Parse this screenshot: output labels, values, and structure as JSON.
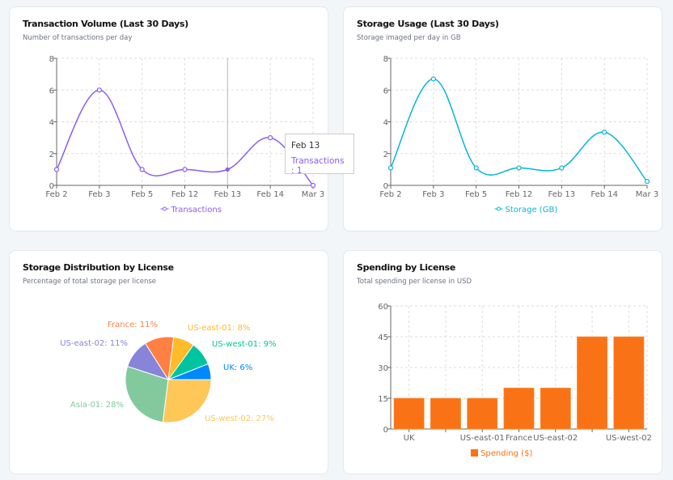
{
  "chart_data": [
    {
      "type": "line",
      "title": "Transaction Volume (Last 30 Days)",
      "subtitle": "Number of transactions per day",
      "categories": [
        "Feb 2",
        "Feb 3",
        "Feb 5",
        "Feb 12",
        "Feb 13",
        "Feb 14",
        "Mar 3"
      ],
      "series": [
        {
          "name": "Transactions",
          "values": [
            1,
            6,
            1,
            1,
            1,
            3,
            0
          ],
          "color": "#8b5cf6"
        }
      ],
      "ylim": [
        0,
        8
      ],
      "yticks": [
        0,
        2,
        4,
        6,
        8
      ],
      "grid": true,
      "legend": "bottom",
      "tooltip": {
        "label": "Feb 13",
        "text": "Transactions : 1"
      }
    },
    {
      "type": "line",
      "title": "Storage Usage (Last 30 Days)",
      "subtitle": "Storage imaged per day in GB",
      "categories": [
        "Feb 2",
        "Feb 3",
        "Feb 5",
        "Feb 12",
        "Feb 13",
        "Feb 14",
        "Mar 3"
      ],
      "series": [
        {
          "name": "Storage (GB)",
          "values": [
            1.1,
            6.7,
            1.1,
            1.1,
            1.1,
            3.35,
            0.25
          ],
          "color": "#06b6d4"
        }
      ],
      "ylim": [
        0,
        8
      ],
      "yticks": [
        0,
        2,
        4,
        6,
        8
      ],
      "grid": true,
      "legend": "bottom"
    },
    {
      "type": "pie",
      "title": "Storage Distribution by License",
      "subtitle": "Percentage of total storage per license",
      "slices": [
        {
          "label": "UK: 6%",
          "value": 6,
          "color": "#0088FE"
        },
        {
          "label": "US-west-01: 9%",
          "value": 9,
          "color": "#00C49F"
        },
        {
          "label": "US-east-01: 8%",
          "value": 8,
          "color": "#FFBB28"
        },
        {
          "label": "France: 11%",
          "value": 11,
          "color": "#FF8042"
        },
        {
          "label": "US-east-02: 11%",
          "value": 11,
          "color": "#8884d8"
        },
        {
          "label": "Asia-01: 28%",
          "value": 28,
          "color": "#82ca9d"
        },
        {
          "label": "US-west-02: 27%",
          "value": 27,
          "color": "#ffc658"
        }
      ]
    },
    {
      "type": "bar",
      "title": "Spending by License",
      "subtitle": "Total spending per license in USD",
      "categories": [
        "UK",
        "",
        "US-east-01",
        "France",
        "US-east-02",
        "",
        "US-west-02"
      ],
      "series": [
        {
          "name": "Spending ($)",
          "values": [
            15,
            15,
            15,
            20,
            20,
            45,
            45
          ],
          "color": "#f97316"
        }
      ],
      "ylim": [
        0,
        60
      ],
      "yticks": [
        0,
        15,
        30,
        45,
        60
      ],
      "grid": true,
      "legend": "bottom"
    }
  ]
}
